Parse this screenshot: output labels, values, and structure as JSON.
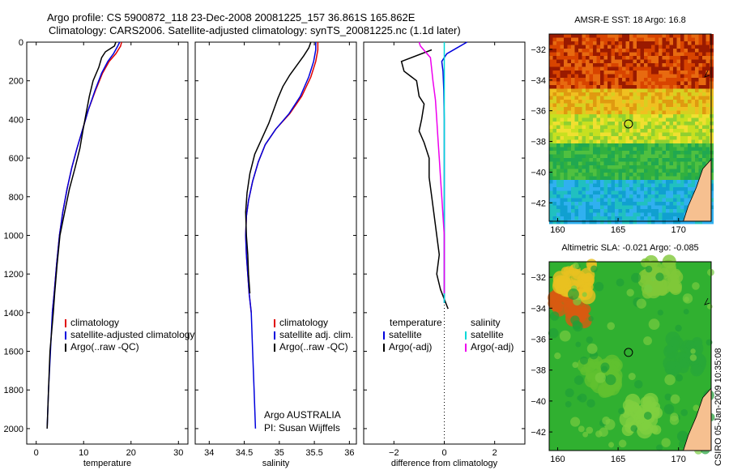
{
  "titles": {
    "line1": "Argo profile: CS 5900872_118 23-Dec-2008 20081225_157 36.861S 165.862E",
    "line2": "Climatology: CARS2006. Satellite-adjusted climatology: synTS_20081225.nc (1.1d later)"
  },
  "side_caption": "CSIRO 05-Jan-2009 10:35:08",
  "credit": {
    "line1": "Argo AUSTRALIA",
    "line2": "PI: Susan Wijffels"
  },
  "colors": {
    "climatology": "#e00000",
    "satellite": "#0000dd",
    "argo": "#000000",
    "sat_salinity": "#00d8d8",
    "argo_salinity": "#ee00ee",
    "land": "#f6c090"
  },
  "chart_data": [
    {
      "type": "line",
      "xlabel": "temperature",
      "xlim": [
        -2,
        32
      ],
      "ylim": [
        2080,
        0
      ],
      "xticks": [
        0,
        10,
        20,
        30
      ],
      "yticks": [
        0,
        200,
        400,
        600,
        800,
        1000,
        1200,
        1400,
        1600,
        1800,
        2000
      ],
      "legend": [
        "climatology",
        "satellite-adjusted climatology",
        "Argo(..raw -QC)"
      ],
      "series": [
        {
          "name": "climatology",
          "color": "#e00000",
          "points": [
            [
              18.0,
              0
            ],
            [
              17.8,
              20
            ],
            [
              16.8,
              60
            ],
            [
              15.4,
              100
            ],
            [
              14.0,
              160
            ],
            [
              12.5,
              250
            ],
            [
              11.0,
              350
            ],
            [
              9.8,
              450
            ],
            [
              8.6,
              550
            ],
            [
              7.5,
              650
            ],
            [
              6.5,
              760
            ],
            [
              5.6,
              880
            ],
            [
              4.9,
              1000
            ],
            [
              4.3,
              1150
            ],
            [
              3.8,
              1300
            ],
            [
              3.4,
              1400
            ]
          ]
        },
        {
          "name": "satellite-adjusted climatology",
          "color": "#0000dd",
          "points": [
            [
              17.6,
              0
            ],
            [
              17.2,
              20
            ],
            [
              16.3,
              60
            ],
            [
              15.1,
              100
            ],
            [
              13.8,
              160
            ],
            [
              12.4,
              250
            ],
            [
              11.0,
              350
            ],
            [
              9.8,
              450
            ],
            [
              8.6,
              550
            ],
            [
              7.5,
              650
            ],
            [
              6.5,
              760
            ],
            [
              5.6,
              880
            ],
            [
              4.9,
              1000
            ],
            [
              4.3,
              1150
            ],
            [
              3.8,
              1300
            ],
            [
              3.4,
              1400
            ],
            [
              3.0,
              1600
            ],
            [
              2.6,
              1800
            ],
            [
              2.3,
              2000
            ]
          ]
        },
        {
          "name": "Argo(..raw -QC)",
          "color": "#000000",
          "points": [
            [
              16.8,
              0
            ],
            [
              16.5,
              20
            ],
            [
              14.6,
              50
            ],
            [
              13.8,
              80
            ],
            [
              13.2,
              130
            ],
            [
              12.0,
              200
            ],
            [
              11.2,
              280
            ],
            [
              10.6,
              360
            ],
            [
              9.9,
              450
            ],
            [
              9.2,
              550
            ],
            [
              8.2,
              650
            ],
            [
              7.0,
              760
            ],
            [
              6.0,
              880
            ],
            [
              5.0,
              1000
            ],
            [
              4.4,
              1150
            ],
            [
              3.9,
              1300
            ],
            [
              3.6,
              1400
            ],
            [
              2.9,
              1600
            ],
            [
              2.6,
              1800
            ],
            [
              2.3,
              2000
            ]
          ]
        }
      ]
    },
    {
      "type": "line",
      "xlabel": "salinity",
      "xlim": [
        33.8,
        36.1
      ],
      "ylim": [
        2080,
        0
      ],
      "xticks": [
        34,
        34.5,
        35,
        35.5,
        36
      ],
      "legend": [
        "climatology",
        "satellite adj. clim.",
        "Argo(..raw -QC)"
      ],
      "series": [
        {
          "name": "climatology",
          "color": "#e00000",
          "points": [
            [
              35.55,
              0
            ],
            [
              35.55,
              40
            ],
            [
              35.52,
              100
            ],
            [
              35.45,
              180
            ],
            [
              35.32,
              280
            ],
            [
              35.15,
              370
            ],
            [
              34.95,
              450
            ],
            [
              34.8,
              530
            ],
            [
              34.7,
              620
            ],
            [
              34.62,
              720
            ],
            [
              34.56,
              820
            ],
            [
              34.53,
              900
            ],
            [
              34.52,
              1000
            ],
            [
              34.53,
              1100
            ],
            [
              34.55,
              1200
            ],
            [
              34.57,
              1300
            ],
            [
              34.6,
              1400
            ]
          ]
        },
        {
          "name": "satellite adj. clim.",
          "color": "#0000dd",
          "points": [
            [
              35.52,
              0
            ],
            [
              35.52,
              40
            ],
            [
              35.49,
              100
            ],
            [
              35.42,
              180
            ],
            [
              35.3,
              280
            ],
            [
              35.14,
              370
            ],
            [
              34.95,
              450
            ],
            [
              34.8,
              530
            ],
            [
              34.7,
              620
            ],
            [
              34.62,
              720
            ],
            [
              34.56,
              820
            ],
            [
              34.53,
              900
            ],
            [
              34.52,
              1000
            ],
            [
              34.53,
              1100
            ],
            [
              34.55,
              1200
            ],
            [
              34.57,
              1300
            ],
            [
              34.6,
              1400
            ],
            [
              34.62,
              1600
            ],
            [
              34.64,
              1800
            ],
            [
              34.66,
              2000
            ]
          ]
        },
        {
          "name": "Argo(..raw -QC)",
          "color": "#000000",
          "points": [
            [
              35.45,
              0
            ],
            [
              35.42,
              30
            ],
            [
              35.35,
              70
            ],
            [
              35.25,
              120
            ],
            [
              35.15,
              170
            ],
            [
              35.05,
              230
            ],
            [
              34.98,
              290
            ],
            [
              34.92,
              350
            ],
            [
              34.85,
              420
            ],
            [
              34.75,
              500
            ],
            [
              34.65,
              580
            ],
            [
              34.58,
              680
            ],
            [
              34.54,
              780
            ],
            [
              34.52,
              880
            ],
            [
              34.53,
              1000
            ],
            [
              34.55,
              1100
            ],
            [
              34.56,
              1200
            ],
            [
              34.58,
              1300
            ]
          ]
        }
      ]
    },
    {
      "type": "line",
      "xlabel": "difference from climatology",
      "xlim": [
        -3.2,
        3.2
      ],
      "ylim": [
        2080,
        0
      ],
      "xticks": [
        -2,
        0,
        2
      ],
      "legend_temperature": [
        "temperature",
        "satellite",
        "Argo(-adj)"
      ],
      "legend_salinity": [
        "salinity",
        "satellite",
        "Argo(-adj)"
      ],
      "series": [
        {
          "name": "satellite",
          "group": "temperature",
          "color": "#0000dd",
          "points": [
            [
              0.9,
              0
            ],
            [
              0.5,
              30
            ],
            [
              0.1,
              60
            ],
            [
              -0.1,
              100
            ],
            [
              -0.05,
              150
            ],
            [
              -0.02,
              250
            ],
            [
              0,
              400
            ],
            [
              0,
              1000
            ],
            [
              0,
              1350
            ]
          ]
        },
        {
          "name": "Argo(-adj)",
          "group": "temperature",
          "color": "#000000",
          "points": [
            [
              -0.5,
              40
            ],
            [
              -1.7,
              100
            ],
            [
              -1.6,
              150
            ],
            [
              -1.1,
              200
            ],
            [
              -1.0,
              280
            ],
            [
              -0.8,
              320
            ],
            [
              -0.9,
              400
            ],
            [
              -1.0,
              460
            ],
            [
              -0.8,
              520
            ],
            [
              -0.6,
              600
            ],
            [
              -0.6,
              700
            ],
            [
              -0.5,
              800
            ],
            [
              -0.4,
              900
            ],
            [
              -0.3,
              1000
            ],
            [
              -0.2,
              1100
            ],
            [
              -0.3,
              1200
            ],
            [
              -0.15,
              1280
            ],
            [
              0.0,
              1330
            ],
            [
              0.15,
              1380
            ]
          ]
        },
        {
          "name": "satellite",
          "group": "salinity",
          "color": "#00d8d8",
          "points": [
            [
              0,
              0
            ],
            [
              0,
              400
            ],
            [
              0,
              1000
            ],
            [
              0,
              1350
            ]
          ]
        },
        {
          "name": "Argo(-adj)",
          "group": "salinity",
          "color": "#ee00ee",
          "points": [
            [
              -1.0,
              0
            ],
            [
              -0.95,
              20
            ],
            [
              -0.55,
              80
            ],
            [
              -0.45,
              200
            ],
            [
              -0.35,
              300
            ],
            [
              -0.3,
              400
            ],
            [
              -0.25,
              500
            ],
            [
              -0.2,
              600
            ],
            [
              -0.15,
              700
            ],
            [
              -0.1,
              800
            ],
            [
              -0.05,
              900
            ],
            [
              0,
              1000
            ],
            [
              0,
              1200
            ],
            [
              0,
              1300
            ]
          ]
        }
      ]
    },
    {
      "type": "heatmap",
      "title": "AMSR-E SST: 18 Argo: 16.8",
      "xlim": [
        159.3,
        172.7
      ],
      "ylim": [
        -43.2,
        -31
      ],
      "xticks": [
        160,
        165,
        170
      ],
      "yticks": [
        -32,
        -34,
        -36,
        -38,
        -40,
        -42
      ],
      "marker": {
        "lon": 165.86,
        "lat": -36.86
      },
      "bands": [
        {
          "to_lat": -34.5,
          "colors": [
            "#9a1a00",
            "#d84400",
            "#e86a10"
          ]
        },
        {
          "to_lat": -36.2,
          "colors": [
            "#e09a10",
            "#f0c020",
            "#d8d020"
          ]
        },
        {
          "to_lat": -38.0,
          "colors": [
            "#c8e020",
            "#f0e030",
            "#90d030"
          ]
        },
        {
          "to_lat": -40.5,
          "colors": [
            "#30b040",
            "#50c040",
            "#20a850"
          ]
        },
        {
          "to_lat": -43.2,
          "colors": [
            "#10a0d0",
            "#30b0f0",
            "#20c0c0"
          ]
        }
      ]
    },
    {
      "type": "heatmap",
      "title": "Altimetric SLA: -0.021 Argo: -0.085",
      "xlim": [
        159.3,
        172.7
      ],
      "ylim": [
        -43.2,
        -31
      ],
      "xticks": [
        160,
        165,
        170
      ],
      "yticks": [
        -32,
        -34,
        -36,
        -38,
        -40,
        -42
      ],
      "marker": {
        "lon": 165.86,
        "lat": -36.86
      },
      "background": "#30b030",
      "blobs": [
        {
          "lon": 161.0,
          "lat": -33.8,
          "color": "#d85a10"
        },
        {
          "lon": 161.5,
          "lat": -32.2,
          "color": "#e8c020"
        },
        {
          "lon": 168.5,
          "lat": -32.0,
          "color": "#80c838"
        },
        {
          "lon": 163.5,
          "lat": -38.5,
          "color": "#60c030"
        },
        {
          "lon": 167.0,
          "lat": -41.0,
          "color": "#80d040"
        },
        {
          "lon": 170.5,
          "lat": -37.0,
          "color": "#28a838"
        }
      ]
    }
  ]
}
